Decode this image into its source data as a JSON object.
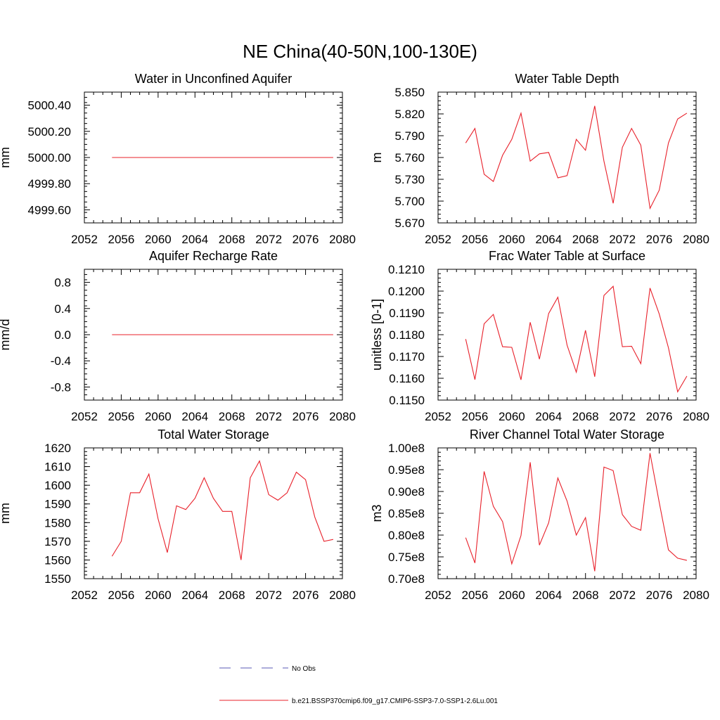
{
  "figure_title": "NE China(40-50N,100-130E)",
  "legend": {
    "obs_label": "No Obs",
    "obs_color": "#5a5ab4",
    "model_label": "b.e21.BSSP370cmip6.f09_g17.CMIP6-SSP3-7.0-SSP1-2.6Lu.001",
    "model_color": "#e8202a"
  },
  "chart_data": [
    {
      "type": "line",
      "title": "Water in Unconfined Aquifer",
      "ylabel": "mm",
      "xlim": [
        2052,
        2080
      ],
      "ylim": [
        4999.5,
        5000.5
      ],
      "xticks": [
        "2052",
        "2056",
        "2060",
        "2064",
        "2068",
        "2072",
        "2076",
        "2080"
      ],
      "yticks": [
        4999.6,
        4999.8,
        5000.0,
        5000.2,
        5000.4
      ],
      "ytick_labels": [
        "4999.60",
        "4999.80",
        "5000.00",
        "5000.20",
        "5000.40"
      ],
      "x": [
        2055,
        2056,
        2057,
        2058,
        2059,
        2060,
        2061,
        2062,
        2063,
        2064,
        2065,
        2066,
        2067,
        2068,
        2069,
        2070,
        2071,
        2072,
        2073,
        2074,
        2075,
        2076,
        2077,
        2078,
        2079
      ],
      "series": [
        {
          "values": [
            5000,
            5000,
            5000,
            5000,
            5000,
            5000,
            5000,
            5000,
            5000,
            5000,
            5000,
            5000,
            5000,
            5000,
            5000,
            5000,
            5000,
            5000,
            5000,
            5000,
            5000,
            5000,
            5000,
            5000,
            5000
          ]
        }
      ]
    },
    {
      "type": "line",
      "title": "Water Table Depth",
      "ylabel": "m",
      "xlim": [
        2052,
        2080
      ],
      "ylim": [
        5.67,
        5.85
      ],
      "xticks": [
        "2052",
        "2056",
        "2060",
        "2064",
        "2068",
        "2072",
        "2076",
        "2080"
      ],
      "yticks": [
        5.67,
        5.7,
        5.73,
        5.76,
        5.79,
        5.82,
        5.85
      ],
      "ytick_labels": [
        "5.670",
        "5.700",
        "5.730",
        "5.760",
        "5.790",
        "5.820",
        "5.850"
      ],
      "x": [
        2055,
        2056,
        2057,
        2058,
        2059,
        2060,
        2061,
        2062,
        2063,
        2064,
        2065,
        2066,
        2067,
        2068,
        2069,
        2070,
        2071,
        2072,
        2073,
        2074,
        2075,
        2076,
        2077,
        2078,
        2079
      ],
      "series": [
        {
          "values": [
            5.78,
            5.8,
            5.737,
            5.727,
            5.763,
            5.785,
            5.821,
            5.755,
            5.765,
            5.767,
            5.732,
            5.735,
            5.785,
            5.77,
            5.831,
            5.755,
            5.697,
            5.774,
            5.8,
            5.777,
            5.69,
            5.715,
            5.78,
            5.813,
            5.821
          ]
        }
      ]
    },
    {
      "type": "line",
      "title": "Aquifer Recharge Rate",
      "ylabel": "mm/d",
      "xlim": [
        2052,
        2080
      ],
      "ylim": [
        -1.0,
        1.0
      ],
      "xticks": [
        "2052",
        "2056",
        "2060",
        "2064",
        "2068",
        "2072",
        "2076",
        "2080"
      ],
      "yticks": [
        -0.8,
        -0.4,
        0.0,
        0.4,
        0.8
      ],
      "ytick_labels": [
        "-0.8",
        "-0.4",
        "0.0",
        "0.4",
        "0.8"
      ],
      "x": [
        2055,
        2056,
        2057,
        2058,
        2059,
        2060,
        2061,
        2062,
        2063,
        2064,
        2065,
        2066,
        2067,
        2068,
        2069,
        2070,
        2071,
        2072,
        2073,
        2074,
        2075,
        2076,
        2077,
        2078,
        2079
      ],
      "series": [
        {
          "values": [
            0,
            0,
            0,
            0,
            0,
            0,
            0,
            0,
            0,
            0,
            0,
            0,
            0,
            0,
            0,
            0,
            0,
            0,
            0,
            0,
            0,
            0,
            0,
            0,
            0
          ]
        }
      ]
    },
    {
      "type": "line",
      "title": "Frac Water Table at Surface",
      "ylabel": "unitless [0-1]",
      "xlim": [
        2052,
        2080
      ],
      "ylim": [
        0.115,
        0.121
      ],
      "xticks": [
        "2052",
        "2056",
        "2060",
        "2064",
        "2068",
        "2072",
        "2076",
        "2080"
      ],
      "yticks": [
        0.115,
        0.116,
        0.117,
        0.118,
        0.119,
        0.12,
        0.121
      ],
      "ytick_labels": [
        "0.1150",
        "0.1160",
        "0.1170",
        "0.1180",
        "0.1190",
        "0.1200",
        "0.1210"
      ],
      "x": [
        2055,
        2056,
        2057,
        2058,
        2059,
        2060,
        2061,
        2062,
        2063,
        2064,
        2065,
        2066,
        2067,
        2068,
        2069,
        2070,
        2071,
        2072,
        2073,
        2074,
        2075,
        2076,
        2077,
        2078,
        2079
      ],
      "series": [
        {
          "values": [
            0.1178,
            0.11594,
            0.1185,
            0.11893,
            0.11745,
            0.11742,
            0.11593,
            0.11857,
            0.11688,
            0.11897,
            0.11972,
            0.11752,
            0.11628,
            0.1182,
            0.11607,
            0.1198,
            0.12022,
            0.11745,
            0.11747,
            0.11667,
            0.12014,
            0.11895,
            0.1174,
            0.11538,
            0.1161
          ]
        }
      ]
    },
    {
      "type": "line",
      "title": "Total Water Storage",
      "ylabel": "mm",
      "xlim": [
        2052,
        2080
      ],
      "ylim": [
        1550,
        1620
      ],
      "xticks": [
        "2052",
        "2056",
        "2060",
        "2064",
        "2068",
        "2072",
        "2076",
        "2080"
      ],
      "yticks": [
        1550,
        1560,
        1570,
        1580,
        1590,
        1600,
        1610,
        1620
      ],
      "ytick_labels": [
        "1550",
        "1560",
        "1570",
        "1580",
        "1590",
        "1600",
        "1610",
        "1620"
      ],
      "x": [
        2055,
        2056,
        2057,
        2058,
        2059,
        2060,
        2061,
        2062,
        2063,
        2064,
        2065,
        2066,
        2067,
        2068,
        2069,
        2070,
        2071,
        2072,
        2073,
        2074,
        2075,
        2076,
        2077,
        2078,
        2079
      ],
      "series": [
        {
          "values": [
            1562,
            1570,
            1596,
            1596,
            1606,
            1582,
            1564,
            1589,
            1587,
            1593,
            1604,
            1593,
            1586,
            1586,
            1560,
            1604,
            1613,
            1595,
            1592,
            1596,
            1607,
            1603,
            1583,
            1570,
            1571
          ]
        }
      ]
    },
    {
      "type": "line",
      "title": "River Channel Total Water Storage",
      "ylabel": "m3",
      "xlim": [
        2052,
        2080
      ],
      "ylim": [
        70000000.0,
        100000000.0
      ],
      "xticks": [
        "2052",
        "2056",
        "2060",
        "2064",
        "2068",
        "2072",
        "2076",
        "2080"
      ],
      "yticks": [
        70000000.0,
        75000000.0,
        80000000.0,
        85000000.0,
        90000000.0,
        95000000.0,
        100000000.0
      ],
      "ytick_labels": [
        "0.70e8",
        "0.75e8",
        "0.80e8",
        "0.85e8",
        "0.90e8",
        "0.95e8",
        "1.00e8"
      ],
      "x": [
        2055,
        2056,
        2057,
        2058,
        2059,
        2060,
        2061,
        2062,
        2063,
        2064,
        2065,
        2066,
        2067,
        2068,
        2069,
        2070,
        2071,
        2072,
        2073,
        2074,
        2075,
        2076,
        2077,
        2078,
        2079
      ],
      "series": [
        {
          "values": [
            79400000.0,
            73600000.0,
            94600000.0,
            86600000.0,
            83100000.0,
            73400000.0,
            79900000.0,
            96700000.0,
            77700000.0,
            82800000.0,
            93100000.0,
            87800000.0,
            80000000.0,
            84000000.0,
            71700000.0,
            95600000.0,
            94800000.0,
            84700000.0,
            82000000.0,
            81100000.0,
            98800000.0,
            87500000.0,
            76600000.0,
            74700000.0,
            74200000.0
          ]
        }
      ]
    }
  ]
}
